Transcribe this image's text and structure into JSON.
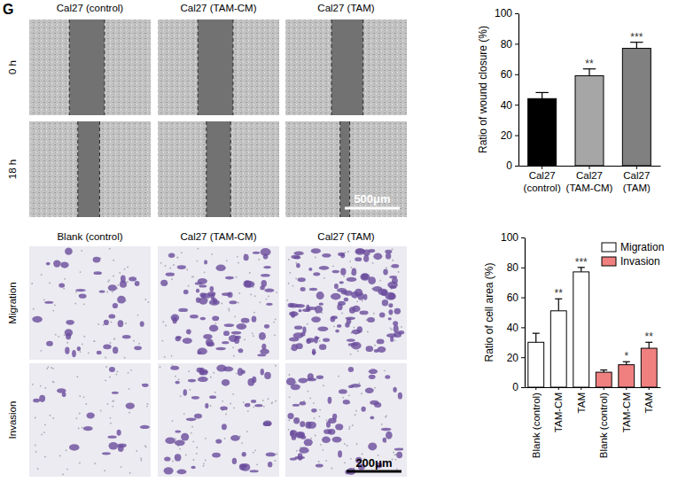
{
  "panel_label": "G",
  "wound_assay": {
    "columns": [
      "Cal27 (control)",
      "Cal27 (TAM-CM)",
      "Cal27 (TAM)"
    ],
    "rows": [
      "0 h",
      "18 h"
    ],
    "scale_bar": "500μm"
  },
  "transwell_assay": {
    "columns": [
      "Blank (control)",
      "Cal27 (TAM-CM)",
      "Cal27 (TAM)"
    ],
    "rows": [
      "Migration",
      "Invasion"
    ],
    "scale_bar": "200μm"
  },
  "chart_data": [
    {
      "type": "bar",
      "y_label": "Ratio of wound closure (%)",
      "categories": [
        "Cal27 (control)",
        "Cal27 (TAM-CM)",
        "Cal27 (TAM)"
      ],
      "values": [
        44,
        59,
        77
      ],
      "errors": [
        4,
        4.5,
        4
      ],
      "annotations": [
        null,
        "**",
        "***"
      ],
      "colors": [
        "#000000",
        "#a6a6a6",
        "#808080"
      ],
      "ylim": [
        0,
        100
      ],
      "yticks": [
        0,
        20,
        40,
        60,
        80,
        100
      ]
    },
    {
      "type": "bar",
      "y_label": "Ratio of cell area (%)",
      "categories": [
        "Blank (control)",
        "TAM-CM",
        "TAM",
        "Blank (control)",
        "TAM-CM",
        "TAM"
      ],
      "series": [
        {
          "name": "Migration",
          "color": "#ffffff",
          "values": [
            30,
            51,
            77,
            null,
            null,
            null
          ],
          "errors": [
            6,
            8,
            3,
            null,
            null,
            null
          ],
          "annotations": [
            null,
            "**",
            "***",
            null,
            null,
            null
          ]
        },
        {
          "name": "Invasion",
          "color": "#f08080",
          "values": [
            null,
            null,
            null,
            10,
            15,
            26
          ],
          "errors": [
            null,
            null,
            null,
            1.5,
            2,
            4
          ],
          "annotations": [
            null,
            null,
            null,
            null,
            "*",
            "**"
          ]
        }
      ],
      "legend": "upper right",
      "ylim": [
        0,
        100
      ],
      "yticks": [
        0,
        20,
        40,
        60,
        80,
        100
      ]
    }
  ]
}
